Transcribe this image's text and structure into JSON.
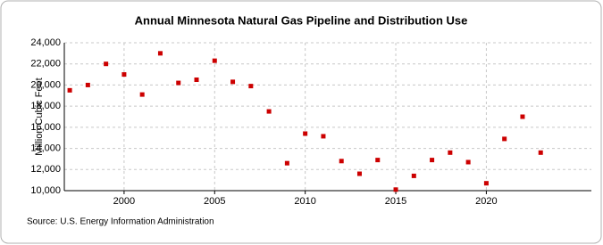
{
  "chart_data": {
    "type": "scatter",
    "title": "Annual Minnesota Natural Gas Pipeline and Distribution Use",
    "y_label": "Million Cubic Feet",
    "source": "Source: U.S. Energy Information Administration",
    "x": [
      1997,
      1998,
      1999,
      2000,
      2001,
      2002,
      2003,
      2004,
      2005,
      2006,
      2007,
      2008,
      2009,
      2010,
      2011,
      2012,
      2013,
      2014,
      2015,
      2016,
      2017,
      2018,
      2019,
      2020,
      2021,
      2022,
      2023
    ],
    "values": [
      19500,
      20000,
      22000,
      21000,
      19100,
      23000,
      20200,
      20500,
      22300,
      20300,
      19900,
      17500,
      12600,
      15400,
      15150,
      12800,
      11600,
      12900,
      10100,
      11400,
      12900,
      13600,
      12700,
      10700,
      14900,
      17000,
      13600
    ],
    "color": "#cc0000",
    "xlim": [
      1996.7,
      2025.8
    ],
    "xticks": [
      2000,
      2005,
      2010,
      2015,
      2020
    ],
    "ylim": [
      10000,
      24000
    ],
    "yticks": [
      {
        "value": 10000,
        "label": "10,000"
      },
      {
        "value": 12000,
        "label": "12,000"
      },
      {
        "value": 14000,
        "label": "14,000"
      },
      {
        "value": 16000,
        "label": "16,000"
      },
      {
        "value": 18000,
        "label": "18,000"
      },
      {
        "value": 20000,
        "label": "20,000"
      },
      {
        "value": 22000,
        "label": "22,000"
      },
      {
        "value": 24000,
        "label": "24,000"
      }
    ],
    "grid": true
  }
}
